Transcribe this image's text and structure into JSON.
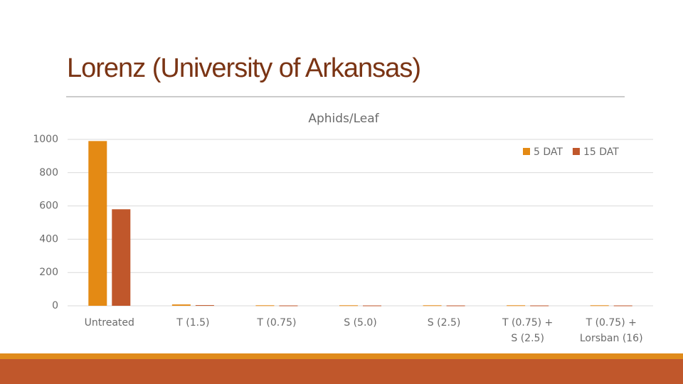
{
  "title": "Lorenz (University of Arkansas)",
  "chart_data": {
    "type": "bar",
    "title": "Aphids/Leaf",
    "categories": [
      [
        "Untreated"
      ],
      [
        "T (1.5)"
      ],
      [
        "T (0.75)"
      ],
      [
        "S (5.0)"
      ],
      [
        "S (2.5)"
      ],
      [
        "T (0.75) +",
        "S (2.5)"
      ],
      [
        "T (0.75) +",
        "Lorsban (16)"
      ]
    ],
    "series": [
      {
        "name": "5 DAT",
        "color": "#e48a14",
        "values": [
          990,
          8,
          3,
          3,
          3,
          3,
          3
        ]
      },
      {
        "name": "15 DAT",
        "color": "#c0572b",
        "values": [
          580,
          4,
          2,
          2,
          2,
          2,
          2
        ]
      }
    ],
    "ylim": [
      0,
      1000
    ],
    "yticks": [
      0,
      200,
      400,
      600,
      800,
      1000
    ],
    "grid": true,
    "legend": "top-right"
  }
}
